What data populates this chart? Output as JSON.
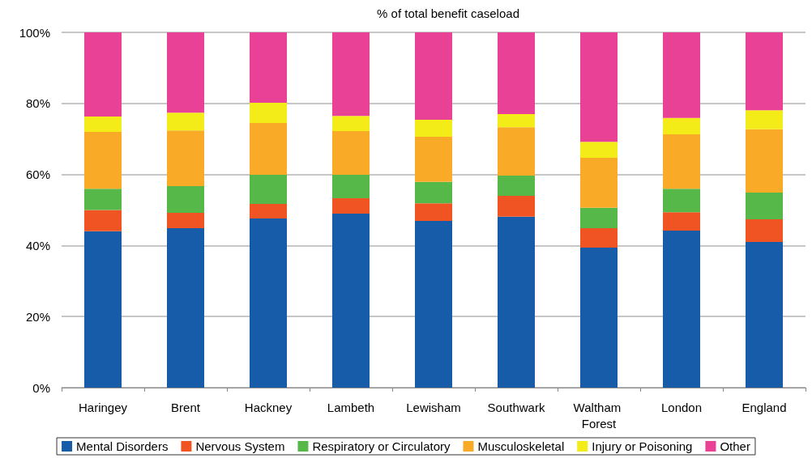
{
  "chart_data": {
    "type": "bar",
    "title": "% of total benefit caseload",
    "stacked": true,
    "categories": [
      "Haringey",
      "Brent",
      "Hackney",
      "Lambeth",
      "Lewisham",
      "Southwark",
      "Waltham Forest",
      "London",
      "England"
    ],
    "series": [
      {
        "name": "Mental Disorders",
        "color": "#175ca9",
        "values": [
          44.0,
          44.9,
          47.6,
          49.0,
          46.9,
          48.1,
          39.4,
          44.2,
          41.0
        ]
      },
      {
        "name": "Nervous System",
        "color": "#f05423",
        "values": [
          6.0,
          4.3,
          4.1,
          4.3,
          5.0,
          5.9,
          5.5,
          5.2,
          6.4
        ]
      },
      {
        "name": "Respiratory or Circulatory",
        "color": "#57b84a",
        "values": [
          6.0,
          7.5,
          8.2,
          6.6,
          6.0,
          5.7,
          5.7,
          6.6,
          7.5
        ]
      },
      {
        "name": "Musculoskeletal",
        "color": "#f9aa27",
        "values": [
          16.0,
          15.7,
          14.6,
          12.3,
          12.7,
          13.6,
          14.1,
          15.3,
          17.8
        ]
      },
      {
        "name": "Injury or Poisoning",
        "color": "#f3ec18",
        "values": [
          4.3,
          5.0,
          5.7,
          4.3,
          4.8,
          3.7,
          4.5,
          4.6,
          5.4
        ]
      },
      {
        "name": "Other",
        "color": "#e94196",
        "values": [
          23.7,
          22.6,
          19.8,
          23.5,
          24.6,
          23.0,
          30.8,
          24.1,
          21.9
        ]
      }
    ],
    "ylim": [
      0,
      100
    ],
    "yticks": [
      {
        "value": 0,
        "label": "0%"
      },
      {
        "value": 20,
        "label": "20%"
      },
      {
        "value": 40,
        "label": "40%"
      },
      {
        "value": 60,
        "label": "60%"
      },
      {
        "value": 80,
        "label": "80%"
      },
      {
        "value": 100,
        "label": "100%"
      }
    ],
    "grid": "y",
    "legend": "bottom"
  }
}
